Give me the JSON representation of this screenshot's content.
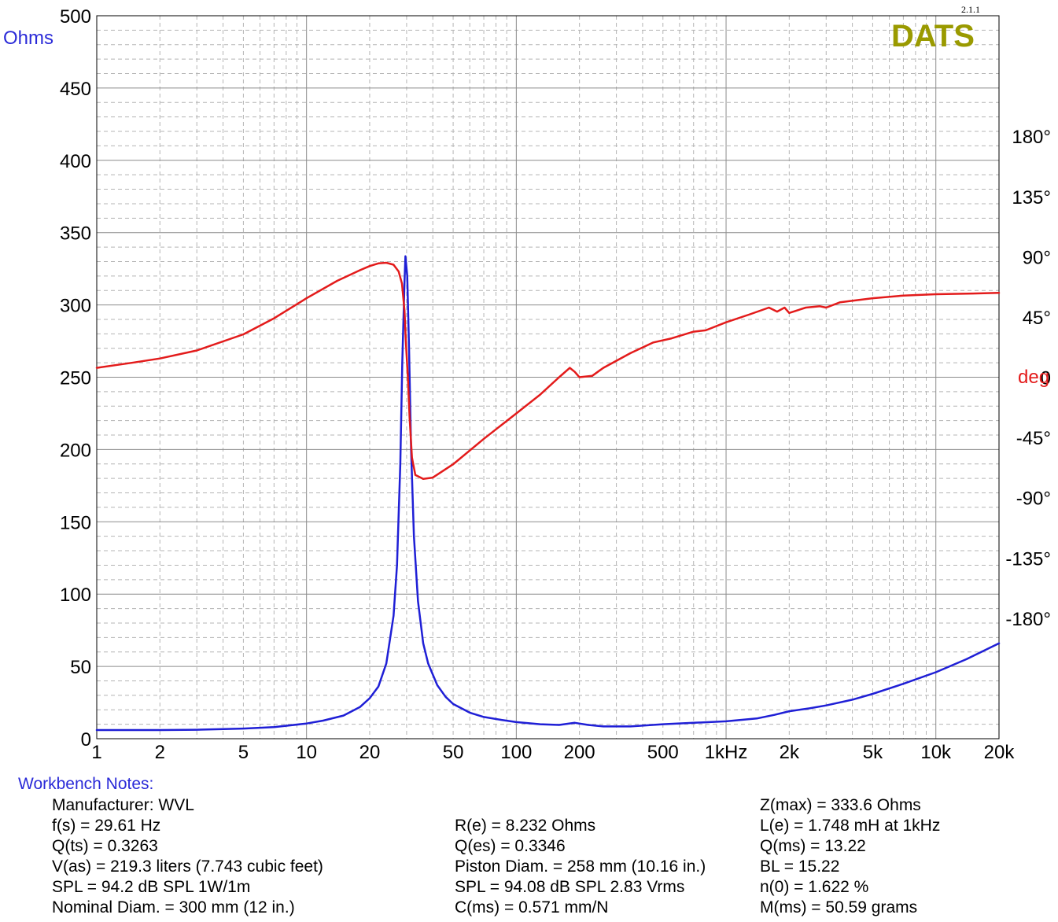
{
  "chart_data": {
    "type": "line",
    "brand": "DATS",
    "version": "2.1.1",
    "brand_color": "#9a9a00",
    "x_scale": "log",
    "xlim": [
      1,
      20000
    ],
    "x_ticks": [
      1,
      2,
      5,
      10,
      20,
      50,
      100,
      200,
      500,
      1000,
      2000,
      5000,
      10000,
      20000
    ],
    "x_tick_labels": [
      "1",
      "2",
      "5",
      "10",
      "20",
      "50",
      "100",
      "200",
      "500",
      "1kHz",
      "2k",
      "5k",
      "10k",
      "20k"
    ],
    "y_left": {
      "label": "Ohms",
      "lim": [
        0,
        500
      ],
      "ticks": [
        0,
        50,
        100,
        150,
        200,
        250,
        300,
        350,
        400,
        450,
        500
      ],
      "tick_labels": [
        "0",
        "50",
        "100",
        "150",
        "200",
        "250",
        "300",
        "350",
        "400",
        "450",
        "500"
      ]
    },
    "y_right": {
      "label": "deg",
      "lim": [
        -270,
        270
      ],
      "ticks": [
        180,
        135,
        90,
        45,
        0,
        -45,
        -90,
        -135,
        -180
      ],
      "tick_labels": [
        "180°",
        "135°",
        "90°",
        "45°",
        "0",
        "-45°",
        "-90°",
        "-135°",
        "-180°"
      ]
    },
    "grid": true,
    "series": [
      {
        "axis": "left",
        "color": "#1f1fd6",
        "points": [
          [
            1,
            6
          ],
          [
            2,
            6
          ],
          [
            3,
            6.2
          ],
          [
            5,
            7
          ],
          [
            7,
            8
          ],
          [
            10,
            10.5
          ],
          [
            12,
            12.5
          ],
          [
            15,
            16
          ],
          [
            18,
            22
          ],
          [
            20,
            28
          ],
          [
            22,
            36
          ],
          [
            24,
            52
          ],
          [
            26,
            85
          ],
          [
            27,
            120
          ],
          [
            28,
            190
          ],
          [
            28.6,
            260
          ],
          [
            29.3,
            315
          ],
          [
            29.61,
            333.6
          ],
          [
            30.2,
            320
          ],
          [
            30.8,
            270
          ],
          [
            31.5,
            200
          ],
          [
            32.5,
            140
          ],
          [
            34,
            95
          ],
          [
            36,
            66
          ],
          [
            38,
            52
          ],
          [
            42,
            37
          ],
          [
            46,
            29
          ],
          [
            50,
            24
          ],
          [
            60,
            18
          ],
          [
            70,
            15
          ],
          [
            85,
            13
          ],
          [
            100,
            11.5
          ],
          [
            130,
            10
          ],
          [
            160,
            9.5
          ],
          [
            190,
            11
          ],
          [
            220,
            9.5
          ],
          [
            260,
            8.5
          ],
          [
            350,
            8.5
          ],
          [
            500,
            10
          ],
          [
            700,
            11
          ],
          [
            1000,
            12
          ],
          [
            1400,
            14
          ],
          [
            1700,
            16.5
          ],
          [
            2000,
            19
          ],
          [
            2500,
            21
          ],
          [
            3000,
            23
          ],
          [
            4000,
            27
          ],
          [
            5000,
            31
          ],
          [
            7000,
            38
          ],
          [
            10000,
            46
          ],
          [
            14000,
            55
          ],
          [
            20000,
            66
          ]
        ]
      },
      {
        "axis": "right",
        "color": "#e31b1b",
        "points": [
          [
            1,
            7
          ],
          [
            1.5,
            11
          ],
          [
            2,
            14
          ],
          [
            3,
            20
          ],
          [
            5,
            32
          ],
          [
            7,
            44
          ],
          [
            10,
            59
          ],
          [
            14,
            72
          ],
          [
            18,
            80
          ],
          [
            20,
            83
          ],
          [
            22,
            85
          ],
          [
            24,
            85.5
          ],
          [
            26,
            84
          ],
          [
            27.5,
            79
          ],
          [
            28.5,
            70
          ],
          [
            29.3,
            50
          ],
          [
            29.8,
            25
          ],
          [
            30.4,
            0
          ],
          [
            31,
            -30
          ],
          [
            31.8,
            -60
          ],
          [
            33,
            -73
          ],
          [
            36,
            -76
          ],
          [
            40,
            -75
          ],
          [
            50,
            -65
          ],
          [
            70,
            -46
          ],
          [
            100,
            -27
          ],
          [
            130,
            -13
          ],
          [
            160,
            0
          ],
          [
            180,
            7
          ],
          [
            190,
            4
          ],
          [
            200,
            0
          ],
          [
            230,
            1
          ],
          [
            260,
            7
          ],
          [
            350,
            18
          ],
          [
            450,
            26
          ],
          [
            550,
            29
          ],
          [
            700,
            34
          ],
          [
            800,
            35
          ],
          [
            1000,
            41
          ],
          [
            1300,
            47
          ],
          [
            1600,
            52
          ],
          [
            1750,
            49
          ],
          [
            1900,
            52
          ],
          [
            2000,
            48
          ],
          [
            2400,
            52
          ],
          [
            2800,
            53
          ],
          [
            3000,
            52
          ],
          [
            3500,
            56
          ],
          [
            5000,
            59
          ],
          [
            7000,
            61
          ],
          [
            10000,
            62
          ],
          [
            15000,
            62.5
          ],
          [
            20000,
            63
          ]
        ]
      }
    ]
  },
  "notes": {
    "heading": "Workbench Notes:",
    "col1": [
      "Manufacturer: WVL",
      "f(s) = 29.61 Hz",
      "Q(ts) = 0.3263",
      "V(as) = 219.3 liters  (7.743 cubic feet)",
      "SPL = 94.2 dB SPL 1W/1m",
      "Nominal Diam. = 300 mm (12 in.)"
    ],
    "col2": [
      "R(e) = 8.232 Ohms",
      "Q(es) = 0.3346",
      "Piston Diam. = 258 mm (10.16 in.)",
      "SPL = 94.08 dB SPL 2.83 Vrms",
      "C(ms) = 0.571 mm/N"
    ],
    "col3": [
      "Z(max) = 333.6 Ohms",
      "L(e) = 1.748 mH at 1kHz",
      "Q(ms) = 13.22",
      "BL = 15.22",
      "n(0) = 1.622 %",
      "M(ms) = 50.59 grams"
    ]
  }
}
